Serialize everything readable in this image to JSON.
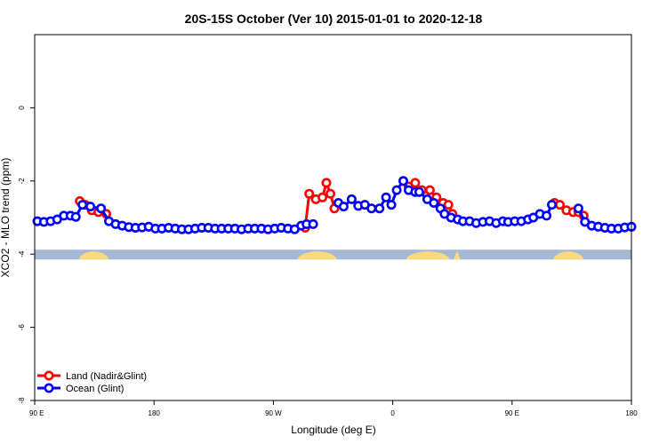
{
  "chart_data": {
    "type": "line",
    "title": "20S-15S October (Ver 10)   2015-01-01 to 2020-12-18",
    "xlabel": "Longitude (deg E)",
    "ylabel": "XCO2 - MLO trend (ppm)",
    "xlim": [
      90,
      540
    ],
    "ylim": [
      -8,
      2
    ],
    "x_ticks": [
      {
        "value": 90,
        "label": "90 E"
      },
      {
        "value": 180,
        "label": "180"
      },
      {
        "value": 270,
        "label": "90 W"
      },
      {
        "value": 360,
        "label": "0"
      },
      {
        "value": 450,
        "label": "90 E"
      },
      {
        "value": 540,
        "label": "180"
      }
    ],
    "y_ticks": [
      {
        "value": 0,
        "label": "0"
      },
      {
        "value": -2,
        "label": "-2"
      },
      {
        "value": -4,
        "label": "-4"
      },
      {
        "value": -6,
        "label": "-6"
      },
      {
        "value": -8,
        "label": "-8"
      }
    ],
    "legend_position": "bottom-left",
    "land_mask": {
      "y": -4,
      "ocean_color": "#a4b8d8",
      "land_color": "#fada7a",
      "land_ranges": [
        [
          123,
          146
        ],
        [
          288,
          318
        ],
        [
          370,
          403
        ],
        [
          406,
          411
        ],
        [
          481,
          504
        ]
      ]
    },
    "series": [
      {
        "name": "Land (Nadir&Glint)",
        "color": "#ff0000",
        "segments": [
          {
            "x": [
              124,
              128,
              133,
              138,
              144
            ],
            "y": [
              -2.55,
              -2.65,
              -2.8,
              -2.85,
              -2.9
            ]
          },
          {
            "x": [
              294,
              297,
              302,
              307,
              310,
              313,
              316
            ],
            "y": [
              -3.28,
              -2.35,
              -2.5,
              -2.45,
              -2.05,
              -2.35,
              -2.75
            ]
          },
          {
            "x": [
              372,
              377,
              382,
              388,
              393,
              398,
              402,
              405
            ],
            "y": [
              -2.15,
              -2.05,
              -2.25,
              -2.25,
              -2.45,
              -2.6,
              -2.65,
              -2.9
            ]
          },
          {
            "x": [
              482,
              486,
              491,
              496,
              500,
              504
            ],
            "y": [
              -2.6,
              -2.65,
              -2.8,
              -2.85,
              -2.85,
              -2.95
            ]
          }
        ]
      },
      {
        "name": "Ocean (Glint)",
        "color": "#0000ff",
        "segments": [
          {
            "x": [
              92,
              97,
              102,
              107,
              112,
              117,
              121,
              126,
              132,
              140,
              146,
              151,
              156,
              161,
              166,
              171,
              176,
              181,
              186,
              191,
              196,
              201,
              206,
              211,
              216,
              221,
              226,
              231,
              236,
              241,
              246,
              251,
              256,
              261,
              266,
              271,
              276,
              281,
              286,
              291
            ],
            "y": [
              -3.1,
              -3.12,
              -3.1,
              -3.05,
              -2.95,
              -2.95,
              -2.98,
              -2.65,
              -2.7,
              -2.75,
              -3.1,
              -3.18,
              -3.22,
              -3.26,
              -3.28,
              -3.27,
              -3.25,
              -3.3,
              -3.3,
              -3.28,
              -3.3,
              -3.32,
              -3.32,
              -3.3,
              -3.28,
              -3.28,
              -3.3,
              -3.3,
              -3.3,
              -3.3,
              -3.32,
              -3.3,
              -3.3,
              -3.3,
              -3.32,
              -3.3,
              -3.28,
              -3.3,
              -3.32,
              -3.22
            ]
          },
          {
            "x": [
              295,
              300
            ],
            "y": [
              -3.18,
              -3.18
            ]
          },
          {
            "x": [
              319,
              323,
              329,
              334,
              339,
              344,
              350,
              355,
              359,
              363,
              368,
              372,
              377,
              380,
              386,
              391,
              396,
              399,
              404,
              409,
              413,
              418,
              423,
              428,
              433,
              438,
              443,
              447,
              452,
              457,
              462,
              466,
              471,
              476,
              480
            ],
            "y": [
              -2.6,
              -2.7,
              -2.5,
              -2.68,
              -2.65,
              -2.75,
              -2.75,
              -2.45,
              -2.65,
              -2.25,
              -2.0,
              -2.25,
              -2.3,
              -2.3,
              -2.5,
              -2.6,
              -2.75,
              -2.9,
              -3.0,
              -3.05,
              -3.1,
              -3.1,
              -3.15,
              -3.12,
              -3.1,
              -3.15,
              -3.1,
              -3.12,
              -3.1,
              -3.1,
              -3.05,
              -3.0,
              -2.9,
              -2.95,
              -2.65
            ]
          },
          {
            "x": [
              500,
              505,
              510,
              515,
              520,
              525,
              530,
              535,
              540
            ],
            "y": [
              -2.75,
              -3.12,
              -3.22,
              -3.25,
              -3.28,
              -3.3,
              -3.3,
              -3.27,
              -3.25
            ]
          }
        ]
      }
    ]
  }
}
